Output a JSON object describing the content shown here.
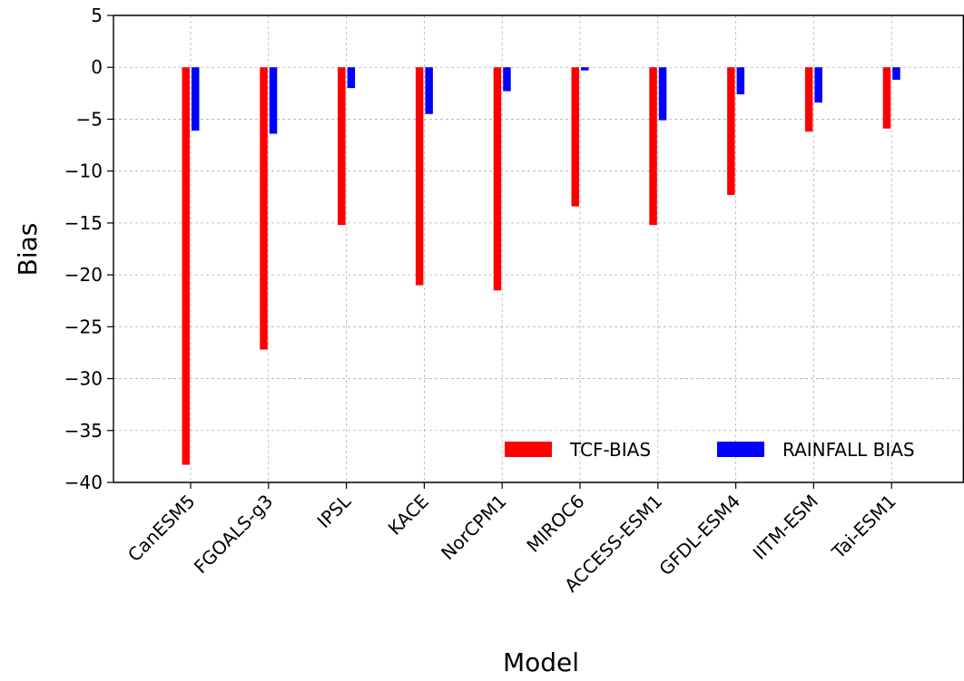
{
  "chart_data": {
    "type": "bar",
    "title": "",
    "xlabel": "Model",
    "ylabel": "Bias",
    "ylim": [
      -40,
      5
    ],
    "yticks": [
      5,
      0,
      -5,
      -10,
      -15,
      -20,
      -25,
      -30,
      -35,
      -40
    ],
    "ytick_labels": [
      "5",
      "0",
      "−5",
      "−10",
      "−15",
      "−20",
      "−25",
      "−30",
      "−35",
      "−40"
    ],
    "categories": [
      "CanESM5",
      "FGOALS-g3",
      "IPSL",
      "KACE",
      "NorCPM1",
      "MIROC6",
      "ACCESS-ESM1",
      "GFDL-ESM4",
      "IITM-ESM",
      "Tai-ESM1"
    ],
    "series": [
      {
        "name": "TCF-BIAS",
        "color": "#ff0000",
        "values": [
          -38.3,
          -27.2,
          -15.2,
          -21.0,
          -21.5,
          -13.4,
          -15.2,
          -12.3,
          -6.2,
          -5.9
        ]
      },
      {
        "name": "RAINFALL BIAS",
        "color": "#0000ff",
        "values": [
          -6.1,
          -6.4,
          -2.0,
          -4.5,
          -2.3,
          -0.3,
          -5.1,
          -2.6,
          -3.4,
          -1.2
        ]
      }
    ],
    "grid": true,
    "legend": "lower-right"
  }
}
